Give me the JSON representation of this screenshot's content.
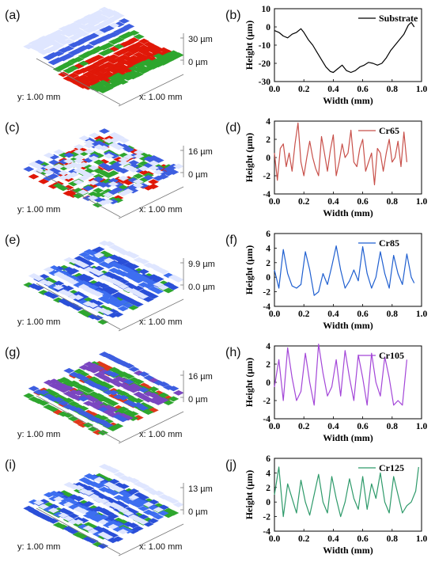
{
  "rows": [
    {
      "surface": {
        "label": "(a)",
        "top": "30 µm",
        "bottom": "0 µm",
        "y_axis": "y: 1.00 mm",
        "x_axis": "x: 1.00 mm",
        "colors": [
          "#7c2a05",
          "#e01808",
          "#2ea62e",
          "#3d5ee0",
          "#dfe6ff"
        ]
      },
      "chart_data": {
        "type": "line",
        "panel": "(b)",
        "xlabel": "Width (mm)",
        "ylabel": "Height (µm)",
        "xlim": [
          0,
          1.0
        ],
        "ylim": [
          -30,
          10
        ],
        "xticks": [
          "0.0",
          "0.2",
          "0.4",
          "0.6",
          "0.8",
          "1.0"
        ],
        "yticks": [
          "10",
          "0",
          "-10",
          "-20",
          "-30"
        ],
        "legend": "top-right",
        "grid": false,
        "series": [
          {
            "name": "Substrate",
            "color": "#000000",
            "x": [
              0,
              0.03,
              0.06,
              0.09,
              0.12,
              0.15,
              0.18,
              0.2,
              0.23,
              0.26,
              0.29,
              0.32,
              0.35,
              0.38,
              0.4,
              0.43,
              0.46,
              0.49,
              0.52,
              0.55,
              0.58,
              0.61,
              0.64,
              0.67,
              0.7,
              0.73,
              0.76,
              0.79,
              0.82,
              0.85,
              0.88,
              0.91,
              0.93,
              0.95
            ],
            "y": [
              -2,
              -3,
              -5,
              -6,
              -4,
              -3,
              -1,
              -3,
              -7,
              -10,
              -14,
              -18,
              -22,
              -24.5,
              -25,
              -23,
              -21,
              -24,
              -25,
              -24,
              -22,
              -21,
              -19.5,
              -20,
              -21,
              -20,
              -17,
              -13,
              -10,
              -7,
              -4,
              1,
              2.5,
              0
            ]
          }
        ]
      }
    },
    {
      "surface": {
        "label": "(c)",
        "top": "16 µm",
        "bottom": "0 µm",
        "y_axis": "y: 1.00 mm",
        "x_axis": "x: 1.00 mm",
        "colors": [
          "#7c2a05",
          "#e01808",
          "#2ea62e",
          "#3d5ee0",
          "#dfe6ff"
        ]
      },
      "chart_data": {
        "type": "line",
        "panel": "(d)",
        "xlabel": "Width (mm)",
        "ylabel": "Height (µm)",
        "xlim": [
          0,
          1.0
        ],
        "ylim": [
          -4,
          4
        ],
        "xticks": [
          "0.0",
          "0.2",
          "0.4",
          "0.6",
          "0.8",
          "1.0"
        ],
        "yticks": [
          "4",
          "2",
          "0",
          "-2",
          "-4"
        ],
        "legend": "top-right",
        "grid": false,
        "series": [
          {
            "name": "Cr65",
            "color": "#c8504a",
            "x": [
              0,
              0.02,
              0.04,
              0.06,
              0.08,
              0.1,
              0.12,
              0.14,
              0.16,
              0.18,
              0.2,
              0.22,
              0.24,
              0.26,
              0.28,
              0.3,
              0.32,
              0.34,
              0.36,
              0.38,
              0.4,
              0.42,
              0.44,
              0.46,
              0.48,
              0.5,
              0.52,
              0.54,
              0.56,
              0.58,
              0.6,
              0.62,
              0.64,
              0.66,
              0.68,
              0.7,
              0.72,
              0.74,
              0.76,
              0.78,
              0.8,
              0.82,
              0.84,
              0.86,
              0.88,
              0.9
            ],
            "y": [
              0.5,
              -2.5,
              1.0,
              1.5,
              -1.0,
              0.5,
              -1.5,
              1.5,
              3.8,
              -0.5,
              -2.0,
              0.0,
              1.8,
              0.0,
              -1.2,
              -2.0,
              2.3,
              0.5,
              -1.5,
              0.8,
              2.5,
              -2.0,
              -0.5,
              1.5,
              0.0,
              0.5,
              3.0,
              -0.5,
              -1.0,
              1.0,
              2.0,
              -1.5,
              -0.5,
              0.5,
              -3.0,
              1.0,
              0.5,
              -1.5,
              0.5,
              2.0,
              -0.5,
              0.0,
              1.8,
              -1.0,
              2.8,
              -0.5
            ]
          }
        ]
      }
    },
    {
      "surface": {
        "label": "(e)",
        "top": "9.9 µm",
        "bottom": "0.0 µm",
        "y_axis": "y: 1.00 mm",
        "x_axis": "x: 1.00 mm",
        "colors": [
          "#2a7a1a",
          "#2ea62e",
          "#2a4fd8",
          "#3d6ef0",
          "#dfe6ff"
        ]
      },
      "chart_data": {
        "type": "line",
        "panel": "(f)",
        "xlabel": "Width (mm)",
        "ylabel": "Height (µm)",
        "xlim": [
          0,
          1.0
        ],
        "ylim": [
          -4,
          6
        ],
        "xticks": [
          "0.0",
          "0.2",
          "0.4",
          "0.6",
          "0.8",
          "1.0"
        ],
        "yticks": [
          "6",
          "4",
          "2",
          "0",
          "-2",
          "-4"
        ],
        "legend": "top-right",
        "grid": false,
        "series": [
          {
            "name": "Cr85",
            "color": "#1f5fd0",
            "x": [
              0,
              0.03,
              0.06,
              0.09,
              0.12,
              0.15,
              0.18,
              0.21,
              0.24,
              0.27,
              0.3,
              0.33,
              0.36,
              0.39,
              0.42,
              0.45,
              0.48,
              0.51,
              0.54,
              0.57,
              0.6,
              0.63,
              0.66,
              0.69,
              0.72,
              0.75,
              0.78,
              0.81,
              0.84,
              0.87,
              0.9,
              0.93,
              0.95
            ],
            "y": [
              1.0,
              -1.5,
              3.8,
              0.5,
              -1.2,
              -1.5,
              -1.0,
              3.5,
              1.0,
              -2.5,
              -2.0,
              0.5,
              -1.0,
              1.5,
              4.3,
              1.0,
              -1.5,
              -0.5,
              1.0,
              -0.5,
              4.2,
              0.5,
              -1.5,
              0.0,
              3.5,
              0.5,
              -1.5,
              3.0,
              0.5,
              -1.0,
              3.2,
              0.0,
              -0.8
            ]
          }
        ]
      }
    },
    {
      "surface": {
        "label": "(g)",
        "top": "16 µm",
        "bottom": "0 µm",
        "y_axis": "y: 1.00 mm",
        "x_axis": "x: 1.00 mm",
        "colors": [
          "#9a6b0e",
          "#e0381a",
          "#2ea62e",
          "#7a46c0",
          "#3d5ee0"
        ]
      },
      "chart_data": {
        "type": "line",
        "panel": "(h)",
        "xlabel": "Width (mm)",
        "ylabel": "Height (µm)",
        "xlim": [
          0,
          1.0
        ],
        "ylim": [
          -4,
          4
        ],
        "xticks": [
          "0.0",
          "0.2",
          "0.4",
          "0.6",
          "0.8",
          "1.0"
        ],
        "yticks": [
          "4",
          "2",
          "0",
          "-2",
          "-4"
        ],
        "legend": "top-right",
        "grid": false,
        "series": [
          {
            "name": "Cr105",
            "color": "#a346d8",
            "x": [
              0,
              0.03,
              0.06,
              0.09,
              0.12,
              0.15,
              0.18,
              0.21,
              0.24,
              0.27,
              0.3,
              0.33,
              0.36,
              0.39,
              0.42,
              0.45,
              0.48,
              0.51,
              0.54,
              0.57,
              0.6,
              0.63,
              0.66,
              0.69,
              0.72,
              0.75,
              0.78,
              0.81,
              0.84,
              0.87,
              0.9
            ],
            "y": [
              -0.5,
              2.5,
              -2.0,
              3.8,
              0.5,
              -2.0,
              -1.0,
              3.2,
              0.0,
              -2.5,
              4.2,
              1.0,
              -1.5,
              -0.5,
              2.5,
              -1.5,
              3.5,
              0.5,
              -2.0,
              3.0,
              0.5,
              -2.5,
              3.2,
              0.0,
              -1.5,
              2.8,
              0.5,
              -2.5,
              -2.0,
              -2.5,
              2.5
            ]
          }
        ]
      }
    },
    {
      "surface": {
        "label": "(i)",
        "top": "13 µm",
        "bottom": "0 µm",
        "y_axis": "y: 1.00 mm",
        "x_axis": "x: 1.00 mm",
        "colors": [
          "#2a7a1a",
          "#2ea62e",
          "#2a4fd8",
          "#3d6ef0",
          "#dfe6ff"
        ]
      },
      "chart_data": {
        "type": "line",
        "panel": "(j)",
        "xlabel": "Width (mm)",
        "ylabel": "Height (µm)",
        "xlim": [
          0,
          1.0
        ],
        "ylim": [
          -4,
          6
        ],
        "xticks": [
          "0.0",
          "0.2",
          "0.4",
          "0.6",
          "0.8",
          "1.0"
        ],
        "yticks": [
          "6",
          "4",
          "2",
          "0",
          "-2",
          "-4"
        ],
        "legend": "top-right",
        "grid": false,
        "series": [
          {
            "name": "Cr125",
            "color": "#2e9a6a",
            "x": [
              0,
              0.03,
              0.06,
              0.09,
              0.12,
              0.15,
              0.18,
              0.21,
              0.24,
              0.27,
              0.3,
              0.33,
              0.36,
              0.39,
              0.42,
              0.45,
              0.48,
              0.51,
              0.54,
              0.57,
              0.6,
              0.63,
              0.66,
              0.69,
              0.72,
              0.75,
              0.78,
              0.81,
              0.84,
              0.87,
              0.9,
              0.93,
              0.96,
              0.98
            ],
            "y": [
              1.0,
              4.8,
              -2.0,
              2.5,
              0.5,
              -1.5,
              3.0,
              0.0,
              -1.8,
              1.0,
              3.8,
              0.0,
              -1.5,
              3.5,
              0.5,
              -2.0,
              0.0,
              3.2,
              0.5,
              -1.0,
              3.5,
              -1.0,
              2.5,
              0.5,
              4.0,
              0.0,
              -1.5,
              3.5,
              1.0,
              -1.5,
              -0.5,
              0.0,
              1.5,
              4.8
            ]
          }
        ]
      }
    }
  ]
}
